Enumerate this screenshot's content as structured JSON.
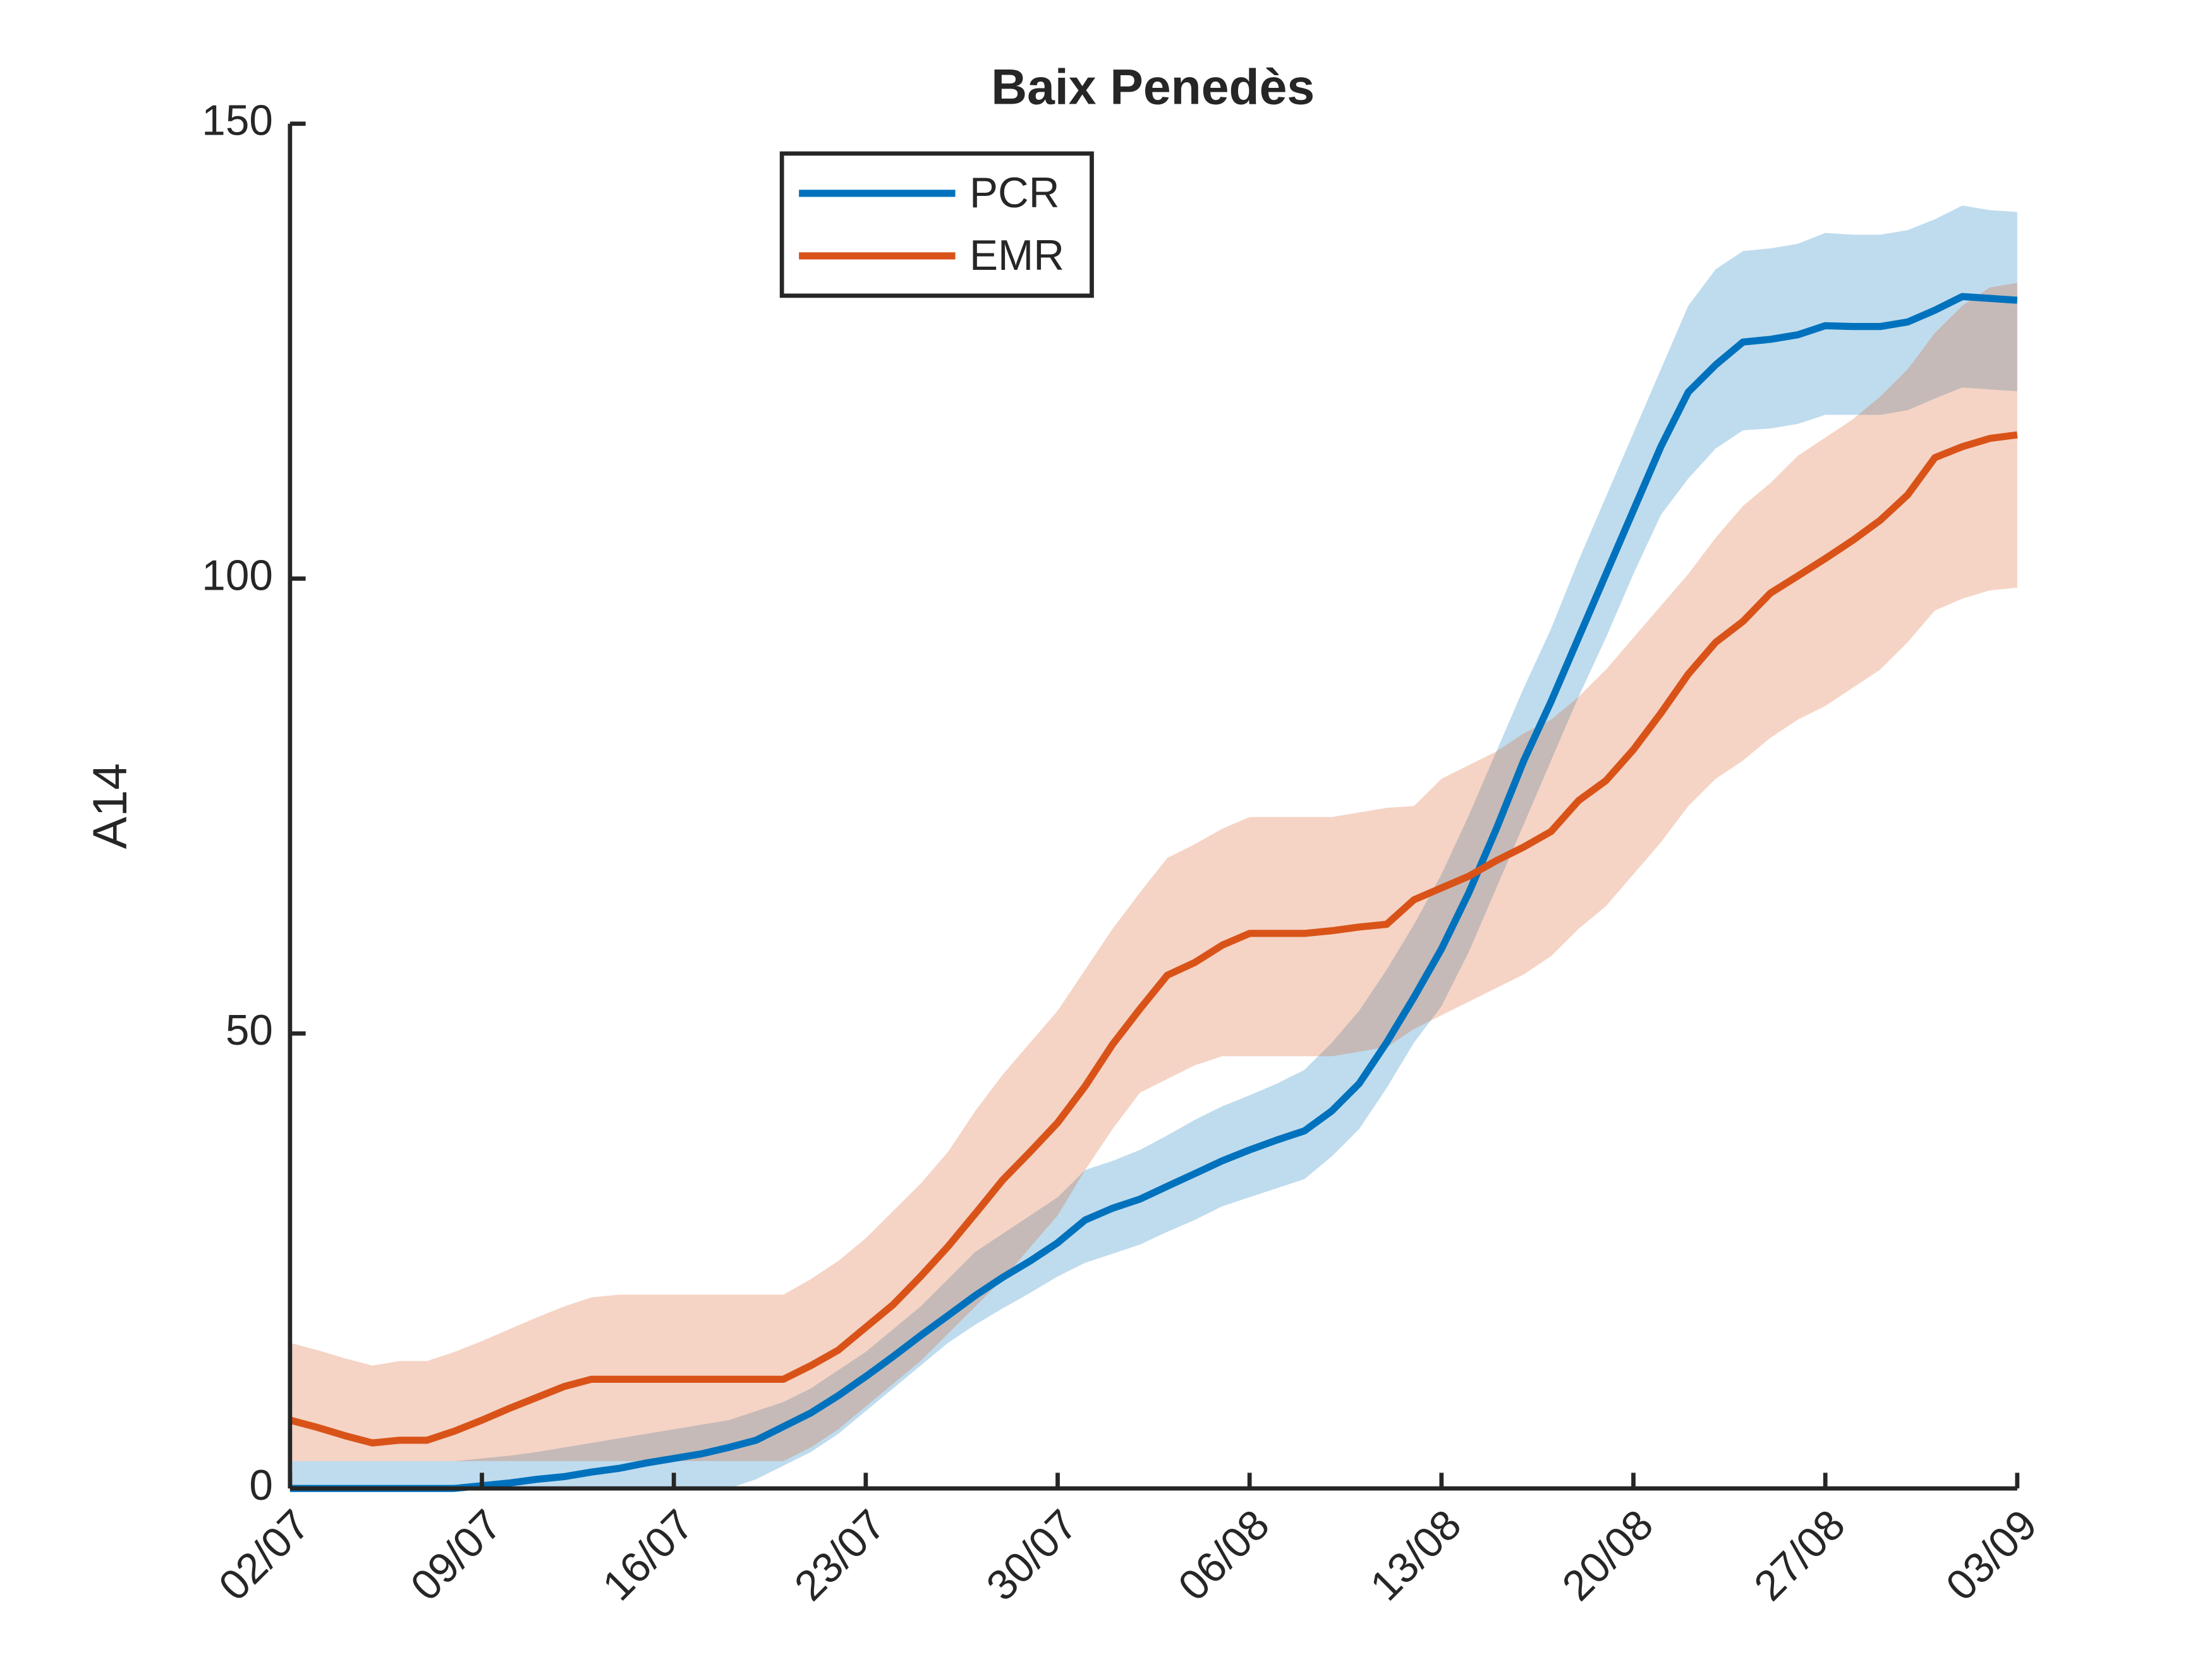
{
  "chart_data": {
    "type": "line",
    "title": "Baix Penedès",
    "y_label": "A14",
    "x": [
      0,
      1,
      2,
      3,
      4,
      5,
      6,
      7,
      8,
      9,
      10,
      11,
      12,
      13,
      14,
      15,
      16,
      17,
      18,
      19,
      20,
      21,
      22,
      23,
      24,
      25,
      26,
      27,
      28,
      29,
      30,
      31,
      32,
      33,
      34,
      35,
      36,
      37,
      38,
      39,
      40,
      41,
      42,
      43,
      44,
      45,
      46,
      47,
      48,
      49,
      50,
      51,
      52,
      53,
      54,
      55,
      56,
      57,
      58,
      59,
      60,
      61,
      62,
      63
    ],
    "xlim": [
      0,
      63
    ],
    "xticks": [
      {
        "value": 0,
        "label": "02/07"
      },
      {
        "value": 7,
        "label": "09/07"
      },
      {
        "value": 14,
        "label": "16/07"
      },
      {
        "value": 21,
        "label": "23/07"
      },
      {
        "value": 28,
        "label": "30/07"
      },
      {
        "value": 35,
        "label": "06/08"
      },
      {
        "value": 42,
        "label": "13/08"
      },
      {
        "value": 49,
        "label": "20/08"
      },
      {
        "value": 56,
        "label": "27/08"
      },
      {
        "value": 63,
        "label": "03/09"
      }
    ],
    "ylim": [
      0,
      150
    ],
    "yticks": [
      0,
      50,
      100,
      150
    ],
    "series": [
      {
        "name": "PCR",
        "color": "#0072bd",
        "values": [
          0,
          0,
          0,
          0,
          0,
          0,
          0,
          0.3,
          0.6,
          1,
          1.3,
          1.8,
          2.2,
          2.8,
          3.3,
          3.8,
          4.5,
          5.3,
          6.8,
          8.3,
          10.2,
          12.3,
          14.5,
          16.8,
          19,
          21.2,
          23.2,
          25,
          27,
          29.5,
          30.8,
          31.8,
          33.2,
          34.6,
          36,
          37.2,
          38.3,
          39.3,
          41.5,
          44.5,
          49,
          54,
          59.3,
          65.5,
          72.5,
          80,
          86.5,
          93.5,
          100.5,
          107.5,
          114.5,
          120.5,
          123.5,
          126,
          126.3,
          126.8,
          127.8,
          127.7,
          127.7,
          128.2,
          129.5,
          131,
          130.8,
          130.6
        ],
        "upper": [
          3,
          3,
          3,
          3,
          3,
          3,
          3,
          3.3,
          3.6,
          4,
          4.5,
          5,
          5.5,
          6,
          6.5,
          7,
          7.5,
          8.5,
          9.5,
          11,
          13,
          15,
          17.5,
          20,
          23,
          26,
          28,
          30,
          32,
          35,
          36,
          37.2,
          38.8,
          40.5,
          42,
          43.2,
          44.5,
          46,
          49,
          52.5,
          57,
          62,
          67.5,
          74,
          81,
          88,
          94.5,
          102,
          109,
          116,
          123,
          130,
          134,
          136,
          136.3,
          136.8,
          138,
          137.8,
          137.8,
          138.3,
          139.5,
          141,
          140.5,
          140.3
        ],
        "lower": [
          0,
          0,
          0,
          0,
          0,
          0,
          0,
          0,
          0,
          0,
          0,
          0,
          0,
          0,
          0,
          0,
          0,
          1,
          2.5,
          4,
          6,
          8.5,
          11,
          13.5,
          16,
          18,
          19.8,
          21.5,
          23.3,
          24.8,
          25.8,
          26.8,
          28.2,
          29.5,
          31,
          32,
          33,
          34,
          36.5,
          39.5,
          44,
          49,
          53,
          59,
          66,
          73,
          80,
          87,
          93.5,
          100.5,
          107,
          111,
          114.3,
          116.3,
          116.5,
          117,
          118,
          118,
          118,
          118.5,
          119.8,
          121,
          120.8,
          120.6
        ]
      },
      {
        "name": "EMR",
        "color": "#d95319",
        "values": [
          7.5,
          6.7,
          5.8,
          5,
          5.3,
          5.3,
          6.3,
          7.5,
          8.8,
          10,
          11.2,
          12,
          12,
          12,
          12,
          12,
          12,
          12,
          12,
          13.5,
          15.2,
          17.7,
          20.2,
          23.3,
          26.6,
          30.2,
          33.9,
          37,
          40.2,
          44.2,
          48.8,
          52.7,
          56.4,
          57.8,
          59.7,
          61,
          61,
          61,
          61.3,
          61.7,
          62,
          64.7,
          66,
          67.3,
          69,
          70.5,
          72.2,
          75.6,
          77.8,
          81.2,
          85.2,
          89.5,
          93,
          95.3,
          98.4,
          100.3,
          102.2,
          104.2,
          106.4,
          109.2,
          113.3,
          114.5,
          115.4,
          115.8
        ],
        "upper": [
          16,
          15.2,
          14.3,
          13.5,
          14,
          14,
          15,
          16.2,
          17.5,
          18.8,
          20,
          21,
          21.3,
          21.3,
          21.3,
          21.3,
          21.3,
          21.3,
          21.3,
          23,
          25,
          27.5,
          30.5,
          33.5,
          37,
          41.5,
          45.5,
          49,
          52.5,
          57,
          61.5,
          65.5,
          69.3,
          70.8,
          72.5,
          73.8,
          73.8,
          73.8,
          73.8,
          74.3,
          74.8,
          75,
          78,
          79.5,
          81,
          83,
          84.5,
          87,
          90,
          93.5,
          97,
          100.5,
          104.5,
          108,
          110.5,
          113.5,
          115.5,
          117.5,
          120,
          123,
          127,
          130,
          132,
          132.5
        ],
        "lower": [
          3,
          3,
          3,
          3,
          3,
          3,
          3,
          3,
          3,
          3,
          3,
          3,
          3,
          3,
          3,
          3,
          3,
          3,
          3,
          4.5,
          6.5,
          9,
          11.5,
          14,
          17,
          20,
          23,
          26.5,
          30,
          35,
          39.5,
          43.5,
          45,
          46.5,
          47.5,
          47.5,
          47.5,
          47.5,
          47.5,
          48,
          48.5,
          50.5,
          52,
          53.5,
          55,
          56.5,
          58.5,
          61.5,
          64,
          67.5,
          71,
          75,
          78,
          80,
          82.5,
          84.5,
          86,
          88,
          90,
          93,
          96.5,
          97.8,
          98.7,
          99
        ]
      }
    ]
  }
}
